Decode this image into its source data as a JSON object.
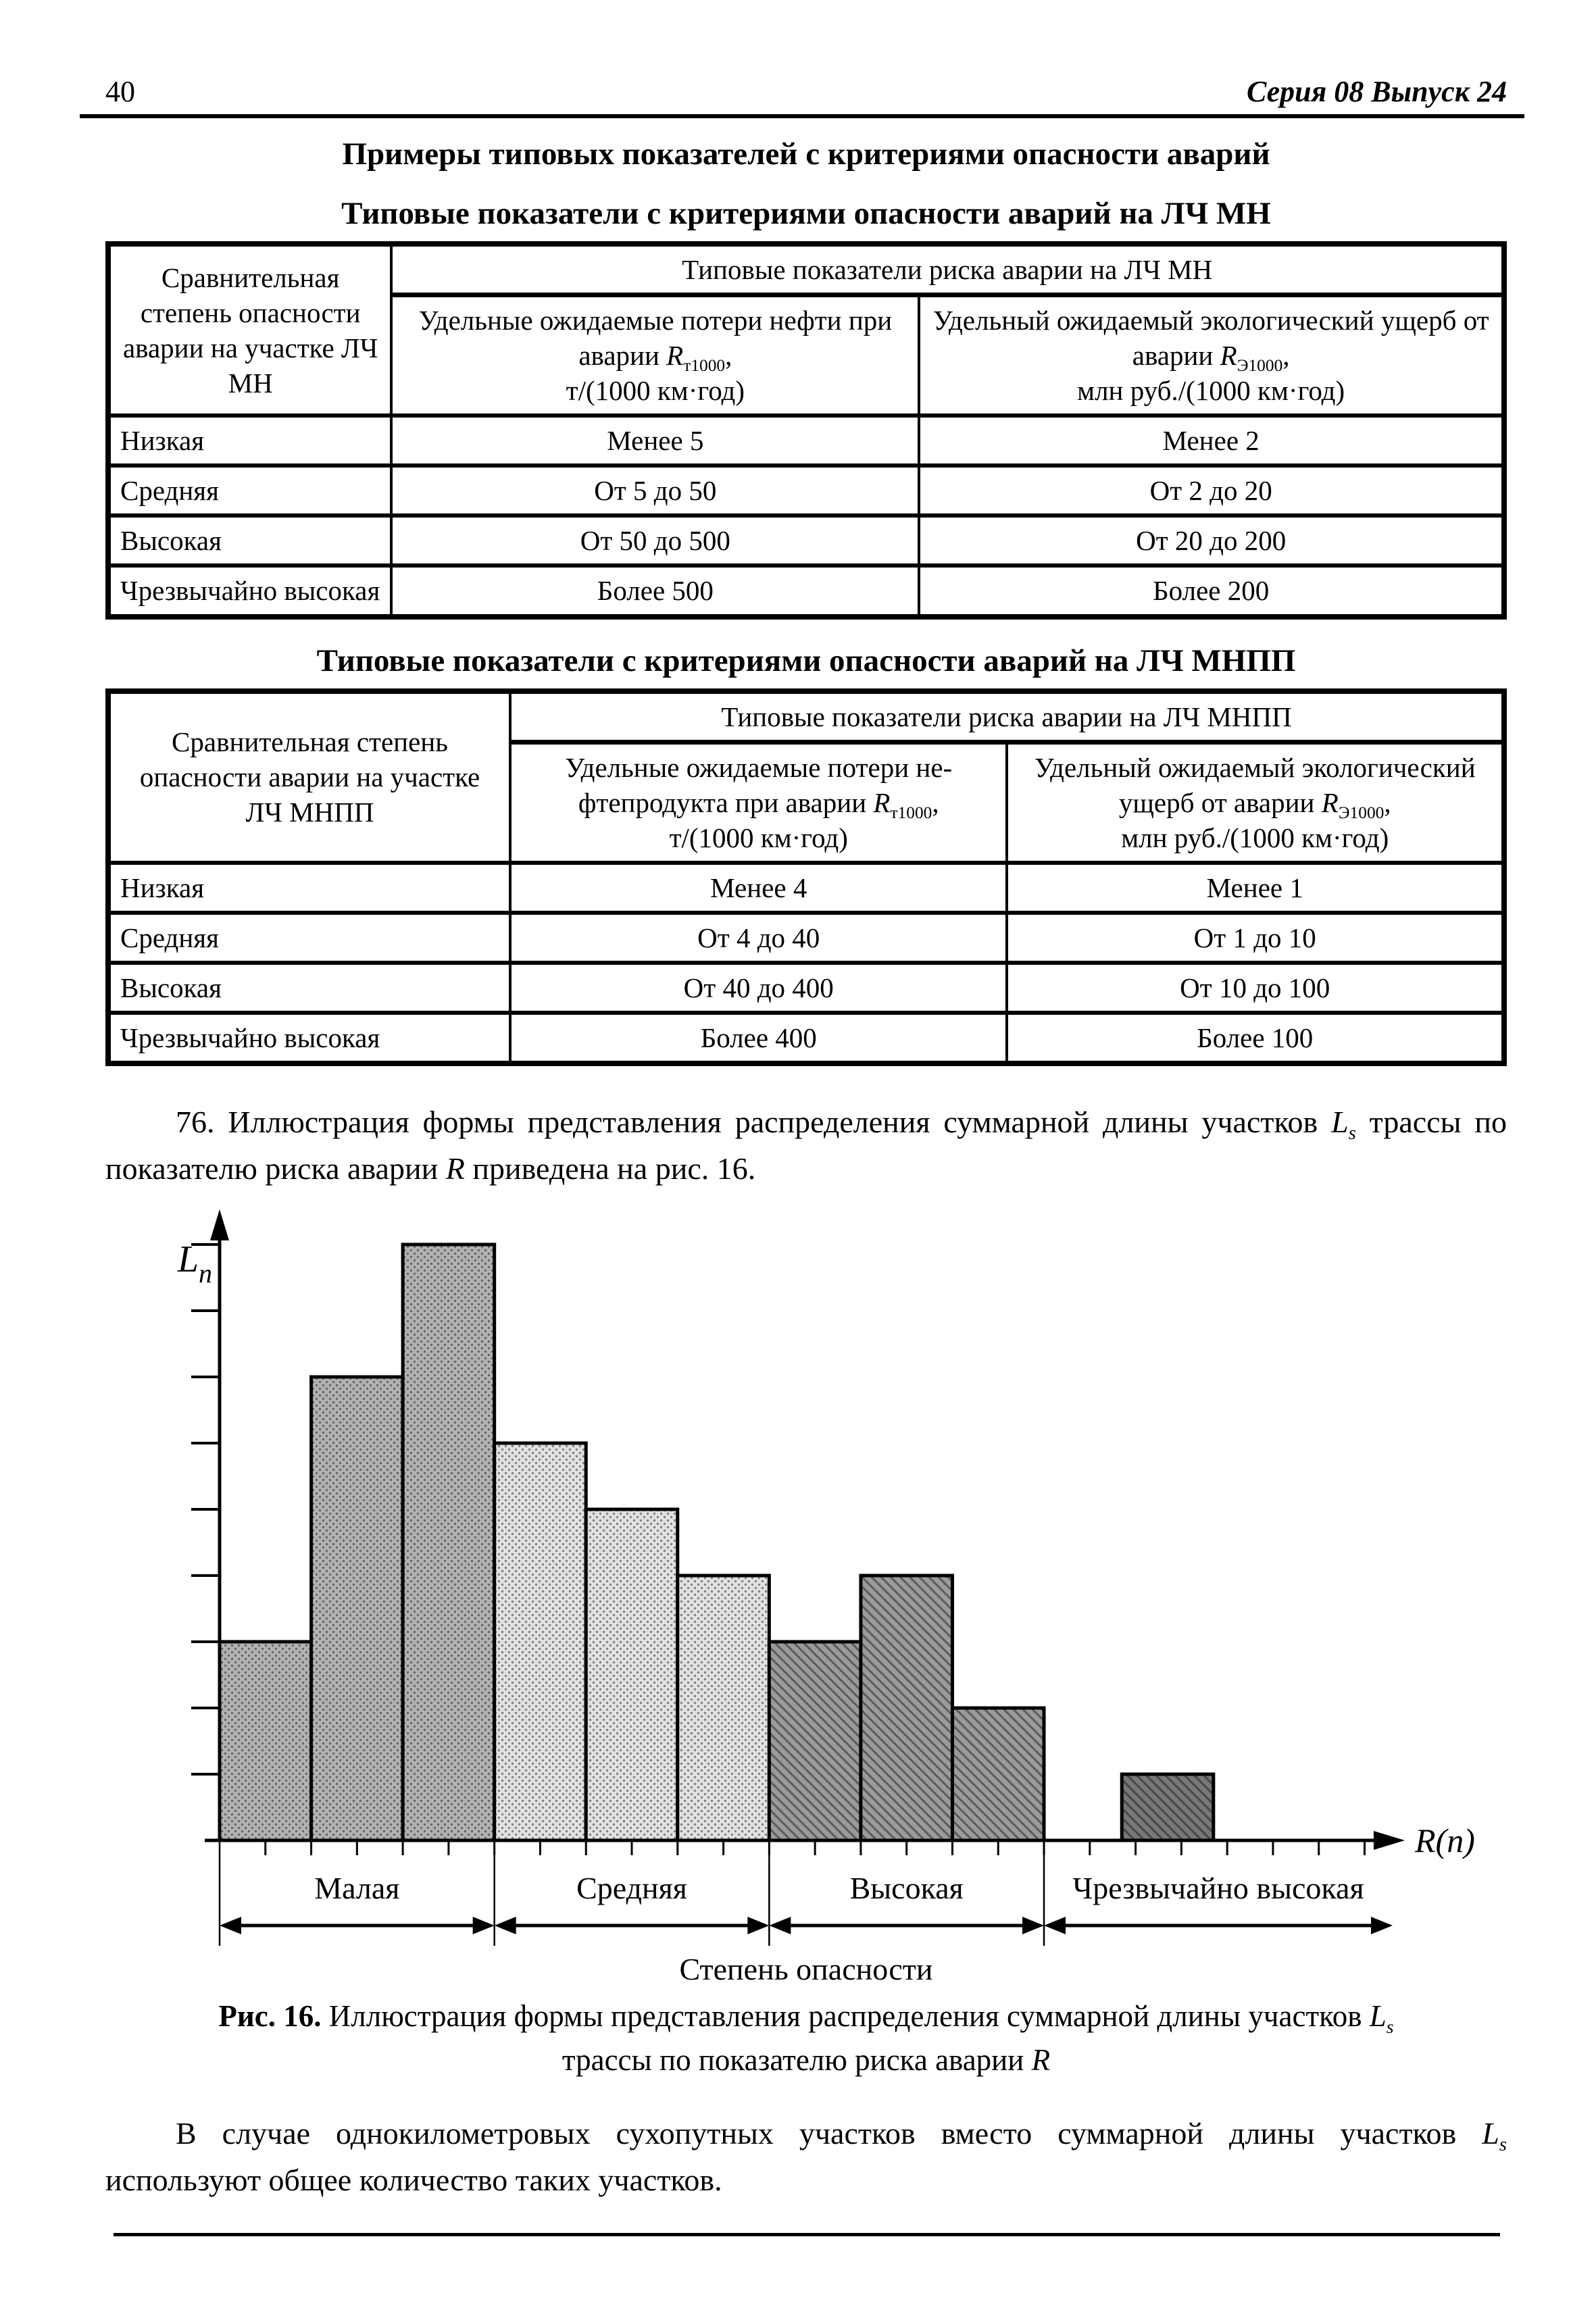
{
  "page": {
    "number": "40",
    "edition": "Серия 08 Выпуск 24"
  },
  "heading": "Примеры типовых показателей с критериями опасности аварий",
  "tables": [
    {
      "title": "Типовые показатели с критериями опасности аварий на ЛЧ МН",
      "col1_header": "Сравнительная степень опасности аварии на участке ЛЧ МН",
      "span_header": "Типовые показатели риска аварии на ЛЧ МН",
      "col2": {
        "pre": "Удельные ожидаемые потери нефти при аварии ",
        "sym": "R",
        "sub": "т1000",
        "post": ",",
        "unit": "т/(1000 км·год)"
      },
      "col3": {
        "pre": "Удельный ожидаемый экологический ущерб от аварии ",
        "sym": "R",
        "sub": "Э1000",
        "post": ",",
        "unit": "млн руб./(1000 км·год)"
      },
      "rows": [
        [
          "Низкая",
          "Менее 5",
          "Менее 2"
        ],
        [
          "Средняя",
          "От 5 до 50",
          "От 2 до 20"
        ],
        [
          "Высокая",
          "От 50 до 500",
          "От 20 до 200"
        ],
        [
          "Чрезвычайно высокая",
          "Более 500",
          "Более 200"
        ]
      ]
    },
    {
      "title": "Типовые показатели с критериями опасности аварий на ЛЧ МНПП",
      "col1_header": "Сравнительная степень опасности аварии на участке ЛЧ МНПП",
      "span_header": "Типовые показатели риска аварии на ЛЧ МНПП",
      "col2": {
        "pre": "Удельные ожидаемые потери не­фтепродукта при аварии ",
        "sym": "R",
        "sub": "т1000",
        "post": ",",
        "unit": "т/(1000 км·год)"
      },
      "col3": {
        "pre": "Удельный ожидаемый экологи­ческий ущерб от аварии ",
        "sym": "R",
        "sub": "Э1000",
        "post": ",",
        "unit": "млн руб./(1000 км·год)"
      },
      "rows": [
        [
          "Низкая",
          "Менее 4",
          "Менее 1"
        ],
        [
          "Средняя",
          "От 4 до 40",
          "От 1 до 10"
        ],
        [
          "Высокая",
          "От 40 до 400",
          "От 10 до 100"
        ],
        [
          "Чрезвычайно высокая",
          "Более 400",
          "Более 100"
        ]
      ]
    }
  ],
  "para76": {
    "t1": "76. Иллюстрация формы представления распределения суммарной длины участков ",
    "L": "L",
    "Lsub": "s",
    "t2": " трассы по показателю риска аварии ",
    "R": "R",
    "t3": " приведена на рис. 16."
  },
  "figure": {
    "caption_bold": "Рис. 16.",
    "caption_line1": " Иллюстрация формы представления распределения суммарной длины участков ",
    "L": "L",
    "Lsub": "s",
    "caption_line2": "трассы по показателю риска аварии ",
    "R": "R"
  },
  "closing": {
    "t1": "В случае однокилометровых сухопутных участков вместо суммарной длины участков ",
    "L": "L",
    "Lsub": "s",
    "t2": " используют общее количество таких участков."
  },
  "chart_data": {
    "type": "bar",
    "title": "",
    "ylabel": {
      "sym": "L",
      "sub": "n"
    },
    "xlabel": "R(n)",
    "axis_title": "Степень опасности",
    "y_ticks": 9,
    "ylim": [
      0,
      9.5
    ],
    "value_unit": "y-axis tick intervals (axis unlabeled)",
    "groups": [
      {
        "label": "Малая",
        "values": [
          3,
          7,
          9
        ],
        "color": "#b2b2b2",
        "pattern": "dots"
      },
      {
        "label": "Средняя",
        "values": [
          6,
          5,
          4
        ],
        "color": "#e2e2e2",
        "pattern": "dots"
      },
      {
        "label": "Высокая",
        "values": [
          3,
          4,
          2
        ],
        "color": "#9b9b9b",
        "pattern": "hatch"
      },
      {
        "label": "Чрезвычайно высокая",
        "values": [
          1
        ],
        "color": "#787878",
        "pattern": "hatch",
        "gap_before_bars": 0.85,
        "extends_to_axis_end": true
      }
    ]
  }
}
